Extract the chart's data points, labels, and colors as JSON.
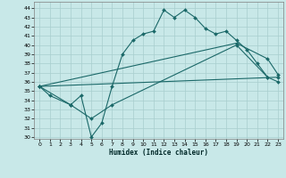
{
  "bg_color": "#c8e8e8",
  "grid_color": "#a8cece",
  "line_color": "#1a6868",
  "xlabel": "Humidex (Indice chaleur)",
  "xlim": [
    -0.5,
    23.5
  ],
  "ylim": [
    29.8,
    44.7
  ],
  "xticks": [
    0,
    1,
    2,
    3,
    4,
    5,
    6,
    7,
    8,
    9,
    10,
    11,
    12,
    13,
    14,
    15,
    16,
    17,
    18,
    19,
    20,
    21,
    22,
    23
  ],
  "yticks": [
    30,
    31,
    32,
    33,
    34,
    35,
    36,
    37,
    38,
    39,
    40,
    41,
    42,
    43,
    44
  ],
  "curve1_x": [
    0,
    1,
    3,
    4,
    5,
    6,
    7,
    8,
    9,
    10,
    11,
    12,
    13,
    14,
    15,
    16,
    17,
    18,
    19,
    20,
    21,
    22
  ],
  "curve1_y": [
    35.5,
    34.5,
    33.5,
    34.5,
    30.0,
    31.5,
    35.5,
    39.0,
    40.5,
    41.2,
    41.5,
    43.8,
    43.0,
    43.8,
    43.0,
    41.8,
    41.2,
    41.5,
    40.5,
    39.5,
    38.0,
    36.5
  ],
  "curve2_x": [
    0,
    3,
    5,
    7,
    19,
    22,
    23
  ],
  "curve2_y": [
    35.5,
    33.5,
    32.0,
    33.5,
    40.0,
    36.5,
    36.0
  ],
  "line3_x": [
    0,
    23
  ],
  "line3_y": [
    35.5,
    36.5
  ],
  "line4_x": [
    0,
    19,
    22,
    23
  ],
  "line4_y": [
    35.5,
    40.2,
    38.5,
    36.8
  ]
}
